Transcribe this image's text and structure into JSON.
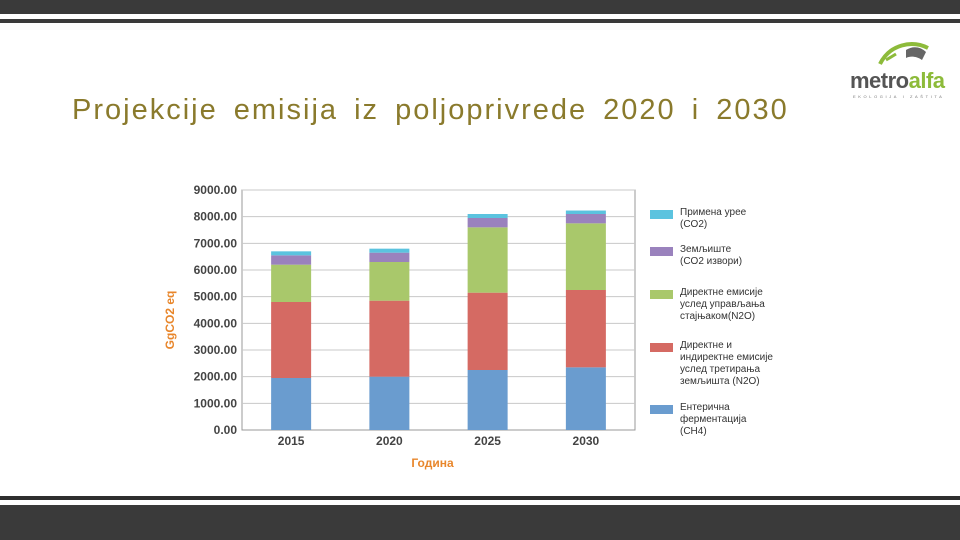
{
  "slide": {
    "title": "Projekcije emisija iz poljoprivrede 2020 i 2030"
  },
  "logo": {
    "part1": "metro",
    "part2": "alfa",
    "tagline": "EKOLOGIJA I ZAŠTITA"
  },
  "colors": {
    "frame_bars": "#3a3a3a",
    "title": "#8a7a2c",
    "axis_labels": "#e8862b"
  },
  "chart_data": {
    "type": "bar",
    "stacked": true,
    "categories": [
      "2015",
      "2020",
      "2025",
      "2030"
    ],
    "xlabel": "Година",
    "ylabel": "GgCO2 eq",
    "ylim": [
      0,
      9000
    ],
    "yticks": [
      "0.00",
      "1000.00",
      "2000.00",
      "3000.00",
      "4000.00",
      "5000.00",
      "6000.00",
      "7000.00",
      "8000.00",
      "9000.00"
    ],
    "grid": true,
    "legend_position": "right",
    "series": [
      {
        "name": "Ентерична ферментација (CH4)",
        "color": "#6a9ccf",
        "values": [
          1950,
          2000,
          2250,
          2350
        ]
      },
      {
        "name": "Директне и индиректне емисије услед третирања земљишта (N2O)",
        "color": "#d56a63",
        "values": [
          2850,
          2850,
          2900,
          2900
        ]
      },
      {
        "name": "Директне емисије услед управљања стајњаком(N2O)",
        "color": "#a9c86b",
        "values": [
          1400,
          1450,
          2450,
          2500
        ]
      },
      {
        "name": "Земљиште (CO2 извори)",
        "color": "#9a82bd",
        "values": [
          350,
          350,
          350,
          350
        ]
      },
      {
        "name": "Примена урее (CO2)",
        "color": "#5bc3df",
        "values": [
          150,
          150,
          150,
          130
        ]
      }
    ]
  },
  "legend": [
    {
      "text": "Примена урее\n(CO2)",
      "color": "#5bc3df"
    },
    {
      "text": "Земљиште\n(CO2 извори)",
      "color": "#9a82bd"
    },
    {
      "text": "Директне емисије\nуслед управљања\nстајњаком(N2O)",
      "color": "#a9c86b"
    },
    {
      "text": "Директне и\nиндиректне емисије\nуслед третирања\nземљишта (N2O)",
      "color": "#d56a63"
    },
    {
      "text": "Ентерична\nферментација\n(CH4)",
      "color": "#6a9ccf"
    }
  ]
}
